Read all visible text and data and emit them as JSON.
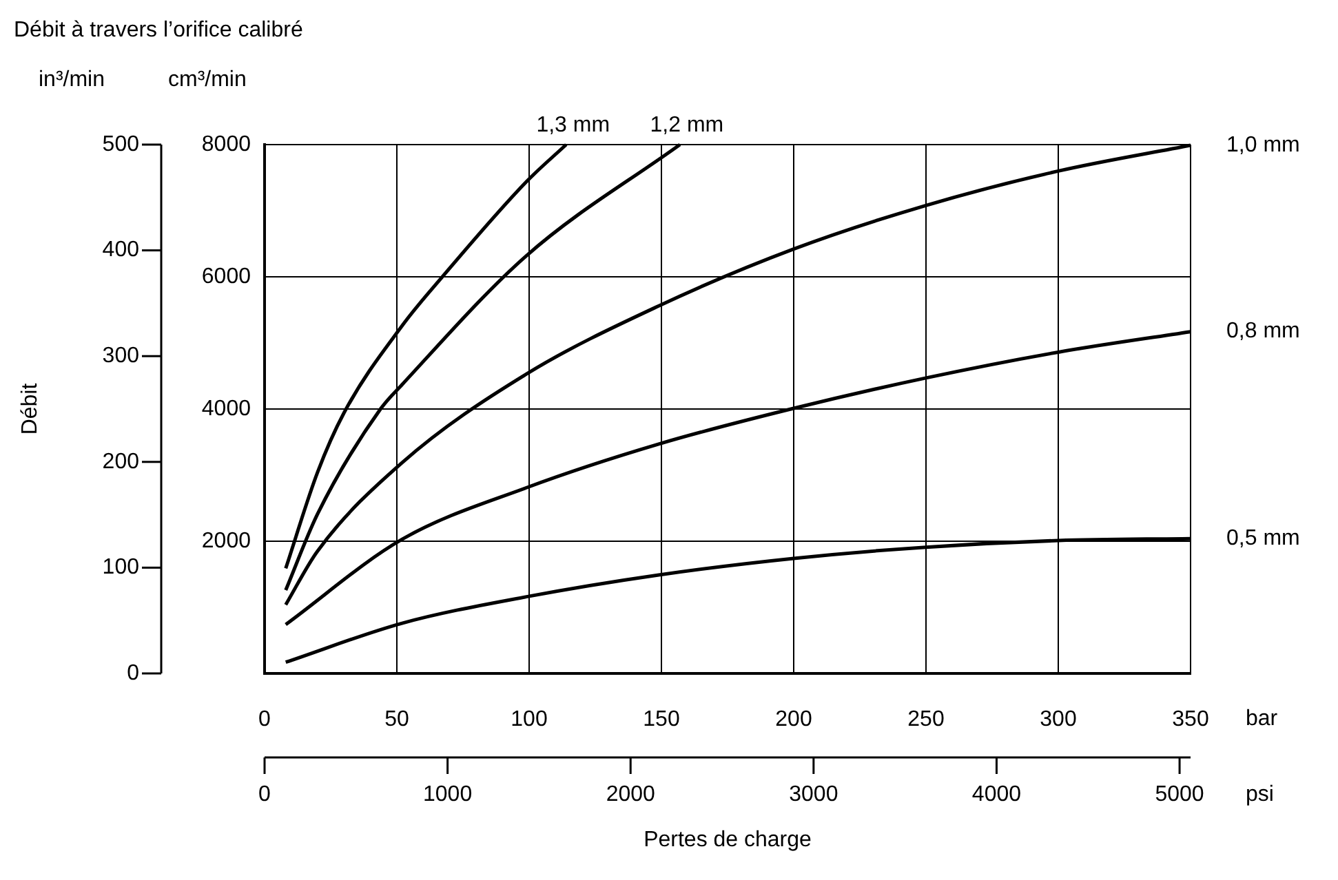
{
  "chart_data": {
    "type": "line",
    "title": "Débit à travers l’orifice calibré",
    "ylabel": "cm³/min",
    "y2label": "in³/min",
    "xlabel": "bar",
    "x2label": "psi",
    "annotations": [
      "Débit",
      "Pertes de charge"
    ],
    "xlim": [
      0,
      350
    ],
    "xticks": [
      0,
      50,
      100,
      150,
      200,
      250,
      300,
      350
    ],
    "x2lim": [
      0,
      5060
    ],
    "x2ticks": [
      0,
      1000,
      2000,
      3000,
      4000,
      5000
    ],
    "ylim": [
      0,
      8000
    ],
    "yticks": [
      2000,
      4000,
      6000,
      8000
    ],
    "y2lim": [
      0,
      500
    ],
    "y2ticks": [
      0,
      100,
      200,
      300,
      400,
      500
    ],
    "grid": true,
    "marker": "none",
    "series": [
      {
        "name": "1,3 mm",
        "color": "#000000",
        "x": [
          8,
          20,
          30,
          52,
          67,
          99,
          114
        ],
        "values": [
          1590,
          3040,
          3940,
          5260,
          5990,
          7440,
          8000
        ]
      },
      {
        "name": "1,2 mm",
        "color": "#000000",
        "x": [
          8,
          20,
          44,
          52,
          99,
          157
        ],
        "values": [
          1260,
          2410,
          4010,
          4370,
          6320,
          8000
        ]
      },
      {
        "name": "1,0 mm",
        "color": "#000000",
        "x": [
          8,
          20,
          52,
          99,
          149,
          200,
          250,
          300,
          350
        ],
        "values": [
          1040,
          1850,
          3190,
          4530,
          5560,
          6420,
          7080,
          7600,
          7990
        ]
      },
      {
        "name": "0,8 mm",
        "color": "#000000",
        "x": [
          8,
          52,
          99,
          149,
          200,
          250,
          300,
          350
        ],
        "values": [
          740,
          2030,
          2810,
          3470,
          4010,
          4470,
          4860,
          5170
        ]
      },
      {
        "name": "0,5 mm",
        "color": "#000000",
        "x": [
          8,
          52,
          99,
          149,
          200,
          250,
          300,
          350
        ],
        "values": [
          170,
          760,
          1160,
          1490,
          1740,
          1910,
          2010,
          2040
        ]
      }
    ]
  }
}
